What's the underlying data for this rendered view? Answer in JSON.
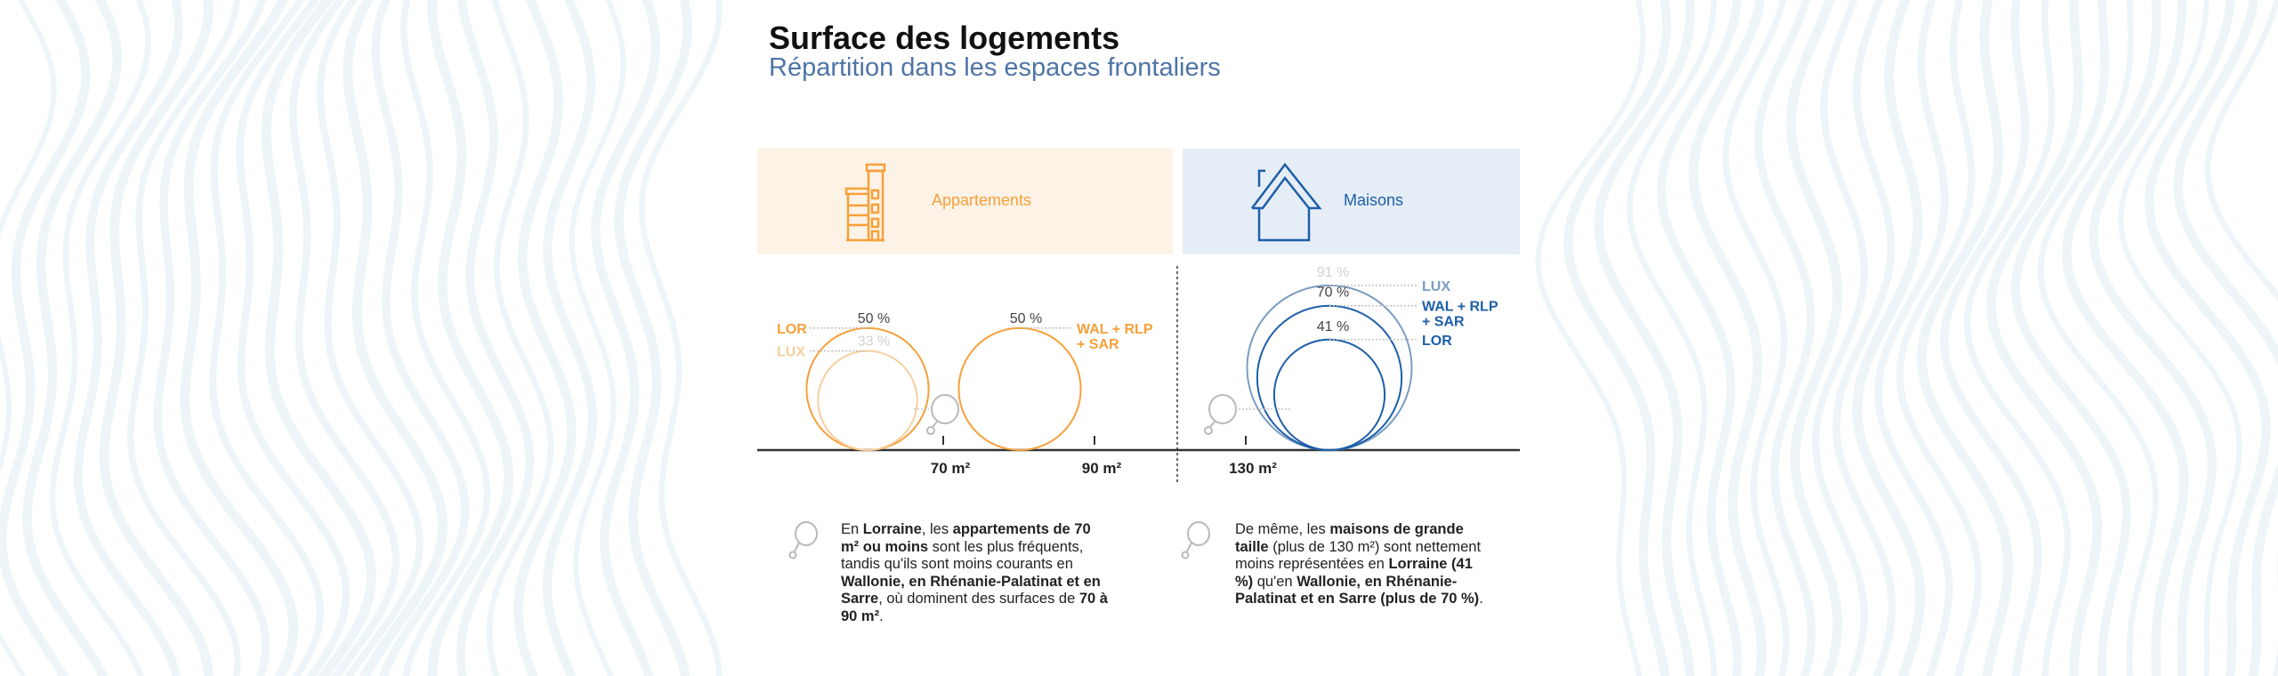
{
  "header": {
    "title": "Surface des logements",
    "subtitle": "Répartition dans les espaces frontaliers"
  },
  "panels": {
    "apartments": {
      "label": "Appartements",
      "icon": "apartment-building-icon"
    },
    "houses": {
      "label": "Maisons",
      "icon": "house-icon"
    }
  },
  "colors": {
    "orange": "#f6a03a",
    "orange_light": "#f8cf9f",
    "blue": "#1d5ea8",
    "blue_light": "#7b9cc2",
    "grey": "#b9b9b9",
    "panel_orange": "#fdf2e6",
    "panel_blue": "#e5edf6"
  },
  "chart_data": {
    "type": "bubble",
    "title": "Surface des logements",
    "subtitle": "Répartition dans les espaces frontaliers",
    "axis_ticks": [
      "70 m²",
      "90 m²",
      "130 m²"
    ],
    "groups": [
      {
        "name": "Appartements",
        "series": [
          {
            "region": "LOR",
            "category": "70 m² ou moins",
            "value": 50,
            "label": "50 %"
          },
          {
            "region": "LUX",
            "category": "70 m² ou moins",
            "value": 33,
            "label": "33 %"
          },
          {
            "region_lines": [
              "WAL + RLP",
              "+ SAR"
            ],
            "region": "WAL + RLP + SAR",
            "category": "70 à 90 m²",
            "value": 50,
            "label": "50 %"
          }
        ]
      },
      {
        "name": "Maisons",
        "series": [
          {
            "region": "LUX",
            "category": "plus de 130 m²",
            "value": 91,
            "label": "91 %"
          },
          {
            "region_lines": [
              "WAL + RLP",
              "+ SAR"
            ],
            "region": "WAL + RLP + SAR",
            "category": "plus de 130 m²",
            "value": 70,
            "label": "70 %"
          },
          {
            "region": "LOR",
            "category": "plus de 130 m²",
            "value": 41,
            "label": "41 %"
          }
        ]
      }
    ]
  },
  "notes": {
    "apartments": [
      {
        "t": "En "
      },
      {
        "t": "Lorraine",
        "b": true
      },
      {
        "t": ", les "
      },
      {
        "t": "appartements de 70 m² ou moins",
        "b": true
      },
      {
        "t": " sont les plus fréquents, tandis qu'ils sont moins courants en "
      },
      {
        "t": "Wallonie, en Rhénanie-Palatinat et en Sarre",
        "b": true
      },
      {
        "t": ", où dominent des surfaces de "
      },
      {
        "t": "70 à 90 m²",
        "b": true
      },
      {
        "t": "."
      }
    ],
    "houses": [
      {
        "t": "De même, les "
      },
      {
        "t": "maisons de grande taille",
        "b": true
      },
      {
        "t": " (plus de 130 m²) sont nettement moins représentées en "
      },
      {
        "t": "Lorraine (41 %)",
        "b": true
      },
      {
        "t": " qu'en "
      },
      {
        "t": "Wallonie, en Rhénanie-Palatinat et en Sarre (plus de 70 %)",
        "b": true
      },
      {
        "t": "."
      }
    ]
  }
}
